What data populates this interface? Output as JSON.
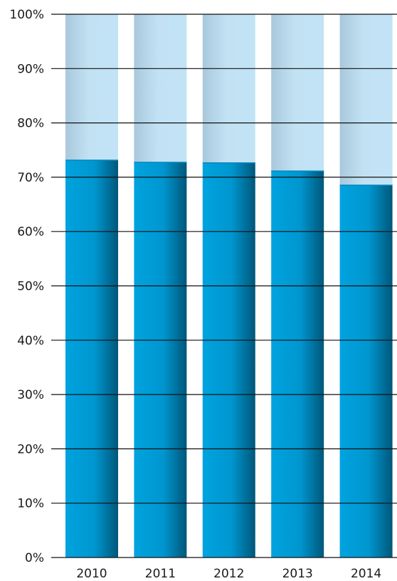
{
  "chart_data": {
    "type": "bar",
    "stacked": true,
    "percent_scale": true,
    "categories": [
      "2010",
      "2011",
      "2012",
      "2013",
      "2014"
    ],
    "series": [
      {
        "values": [
          73.2,
          72.8,
          72.7,
          71.2,
          68.6
        ],
        "color": "#00a0dc"
      },
      {
        "values": [
          26.8,
          27.2,
          27.3,
          28.8,
          31.4
        ],
        "color": "#bfe3f5"
      }
    ],
    "y_ticks": [
      "0%",
      "10%",
      "20%",
      "30%",
      "40%",
      "50%",
      "60%",
      "70%",
      "80%",
      "90%",
      "100%"
    ],
    "ylim": [
      0,
      100
    ],
    "grid": true,
    "title": "",
    "xlabel": "",
    "ylabel": ""
  }
}
